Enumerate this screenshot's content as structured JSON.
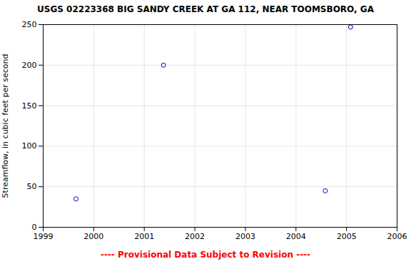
{
  "chart_data": {
    "type": "scatter",
    "title": "USGS 02223368 BIG SANDY CREEK AT GA 112, NEAR TOOMSBORO, GA",
    "y_label": "Streamflow, in cubic feet per second",
    "x": [
      1999.65,
      2001.38,
      2004.58,
      2005.08
    ],
    "values": [
      35,
      200,
      45,
      247
    ],
    "color": "#0000cc",
    "marker": "circle",
    "xlim": [
      1999,
      2006
    ],
    "ylim": [
      0,
      250
    ],
    "xticks": [
      1999,
      2000,
      2001,
      2002,
      2003,
      2004,
      2005,
      2006
    ],
    "yticks": [
      0,
      50,
      100,
      150,
      200,
      250
    ],
    "grid": true,
    "annotations": [
      {
        "text": "---- Provisional Data Subject to Revision ----",
        "color": "#ff0000"
      }
    ]
  }
}
